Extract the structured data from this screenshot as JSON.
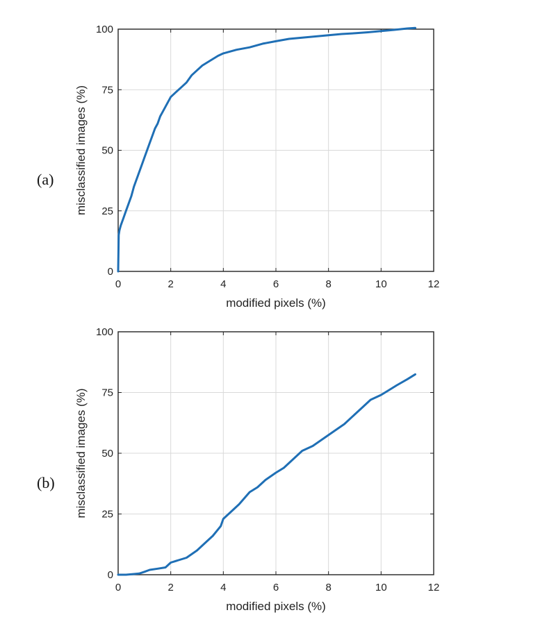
{
  "chart_data": [
    {
      "type": "line",
      "panel_label": "(a)",
      "title": "",
      "xlabel": "modified pixels (%)",
      "ylabel": "misclassified images (%)",
      "xlim": [
        0,
        12
      ],
      "ylim": [
        0,
        100
      ],
      "xticks": [
        0,
        2,
        4,
        6,
        8,
        10,
        12
      ],
      "yticks": [
        0,
        25,
        50,
        75,
        100
      ],
      "grid": true,
      "line_color": "#1f6fb5",
      "series": [
        {
          "x": [
            0,
            0.02,
            0.05,
            0.1,
            0.2,
            0.3,
            0.4,
            0.5,
            0.6,
            0.7,
            0.8,
            0.9,
            1.0,
            1.1,
            1.2,
            1.3,
            1.4,
            1.5,
            1.6,
            1.7,
            1.8,
            1.9,
            2.0,
            2.2,
            2.4,
            2.6,
            2.8,
            3.0,
            3.2,
            3.5,
            3.8,
            4.0,
            4.5,
            5.0,
            5.5,
            6.0,
            6.5,
            7.0,
            7.5,
            8.0,
            8.5,
            9.0,
            9.5,
            10.0,
            10.5,
            11.0,
            11.3
          ],
          "y": [
            0,
            15,
            17,
            19,
            22,
            25,
            28,
            31,
            35,
            38,
            41,
            44,
            47,
            50,
            53,
            56,
            59,
            61,
            64,
            66,
            68,
            70,
            72,
            74,
            76,
            78,
            81,
            83,
            85,
            87,
            89,
            90,
            91.5,
            92.5,
            94,
            95,
            96,
            96.5,
            97,
            97.5,
            98,
            98.3,
            98.7,
            99.2,
            99.7,
            100.3,
            100.5
          ]
        }
      ]
    },
    {
      "type": "line",
      "panel_label": "(b)",
      "title": "",
      "xlabel": "modified pixels (%)",
      "ylabel": "misclassified images (%)",
      "xlim": [
        0,
        12
      ],
      "ylim": [
        0,
        100
      ],
      "xticks": [
        0,
        2,
        4,
        6,
        8,
        10,
        12
      ],
      "yticks": [
        0,
        25,
        50,
        75,
        100
      ],
      "grid": true,
      "line_color": "#1f6fb5",
      "series": [
        {
          "x": [
            0,
            0.3,
            0.6,
            0.8,
            1.0,
            1.2,
            1.5,
            1.8,
            2.0,
            2.3,
            2.6,
            3.0,
            3.3,
            3.6,
            3.9,
            4.0,
            4.3,
            4.6,
            5.0,
            5.3,
            5.6,
            6.0,
            6.3,
            6.6,
            7.0,
            7.4,
            7.8,
            8.2,
            8.6,
            9.0,
            9.3,
            9.6,
            10.0,
            10.3,
            10.6,
            11.0,
            11.3
          ],
          "y": [
            0,
            0,
            0.3,
            0.5,
            1.2,
            2,
            2.5,
            3,
            5,
            6,
            7,
            10,
            13,
            16,
            20,
            23,
            26,
            29,
            34,
            36,
            39,
            42,
            44,
            47,
            51,
            53,
            56,
            59,
            62,
            66,
            69,
            72,
            74,
            76,
            78,
            80.5,
            82.5
          ]
        }
      ]
    }
  ]
}
